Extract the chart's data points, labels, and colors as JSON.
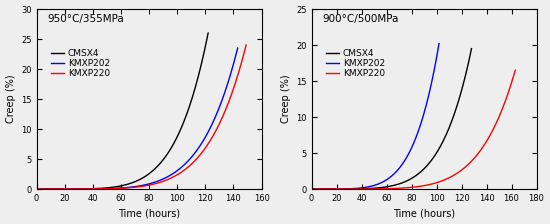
{
  "plot1": {
    "title": "950°C/355MPa",
    "xlabel": "Time (hours)",
    "ylabel": "Creep (%)",
    "xlim": [
      0,
      160
    ],
    "ylim": [
      0,
      30
    ],
    "xticks": [
      0,
      20,
      40,
      60,
      80,
      100,
      120,
      140,
      160
    ],
    "yticks": [
      0,
      5,
      10,
      15,
      20,
      25,
      30
    ],
    "series": [
      {
        "label": "CMSX4",
        "color": "#000000",
        "t_end": 122,
        "y_end": 26.0,
        "A": 1.2e-06,
        "power": 5.5
      },
      {
        "label": "KMXP202",
        "color": "#0000ff",
        "t_end": 143,
        "y_end": 23.5,
        "A": 2.5e-07,
        "power": 5.7
      },
      {
        "label": "KMXP220",
        "color": "#ff0000",
        "t_end": 149,
        "y_end": 24.0,
        "A": 1.8e-07,
        "power": 5.8
      }
    ]
  },
  "plot2": {
    "title": "900°C/500MPa",
    "xlabel": "Time (hours)",
    "ylabel": "Creep (%)",
    "xlim": [
      0,
      180
    ],
    "ylim": [
      0,
      25
    ],
    "xticks": [
      0,
      20,
      40,
      60,
      80,
      100,
      120,
      140,
      160,
      180
    ],
    "yticks": [
      0,
      5,
      10,
      15,
      20,
      25
    ],
    "series": [
      {
        "label": "CMSX4",
        "color": "#000000",
        "t_end": 128,
        "y_end": 19.5,
        "A": 8e-07,
        "power": 5.5
      },
      {
        "label": "KMXP202",
        "color": "#0000ff",
        "t_end": 102,
        "y_end": 20.2,
        "A": 5.5e-06,
        "power": 5.2
      },
      {
        "label": "KMXP220",
        "color": "#ff0000",
        "t_end": 163,
        "y_end": 16.5,
        "A": 5.5e-08,
        "power": 6.0
      }
    ]
  },
  "background_color": "#eeeeee",
  "legend_fontsize": 6.5,
  "title_fontsize": 7.5,
  "axis_fontsize": 7,
  "tick_fontsize": 6
}
